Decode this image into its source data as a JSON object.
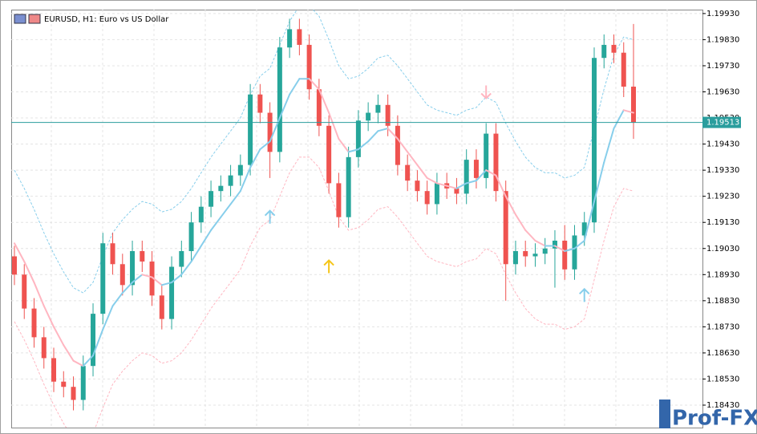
{
  "chart_data": {
    "type": "candlestick",
    "title": "EURUSD, H1:  Euro vs US Dollar",
    "open": [
      1.19,
      1.1893,
      1.188,
      1.1869,
      1.1861,
      1.1852,
      1.185,
      1.1845,
      1.1858,
      1.1878,
      1.1905,
      1.1897,
      1.1889,
      1.1902,
      1.1898,
      1.1885,
      1.1876,
      1.1896,
      1.1902,
      1.1913,
      1.1919,
      1.1925,
      1.1927,
      1.1931,
      1.1935,
      1.1962,
      1.1955,
      1.194,
      1.198,
      1.1987,
      1.1981,
      1.1964,
      1.195,
      1.1928,
      1.1915,
      1.1938,
      1.1952,
      1.1955,
      1.1958,
      1.195,
      1.1935,
      1.1929,
      1.1925,
      1.192,
      1.1928,
      1.1926,
      1.1924,
      1.1937,
      1.193,
      1.1947,
      1.1925,
      1.1897,
      1.1902,
      1.19,
      1.1901,
      1.1903,
      1.1906,
      1.1895,
      1.1908,
      1.1913,
      1.1976,
      1.1981,
      1.1978,
      1.1965
    ],
    "high": [
      1.1904,
      1.1897,
      1.1884,
      1.1873,
      1.1865,
      1.1856,
      1.1854,
      1.1862,
      1.1882,
      1.1909,
      1.1909,
      1.1901,
      1.1906,
      1.1906,
      1.1902,
      1.1889,
      1.19,
      1.1906,
      1.1917,
      1.1923,
      1.1929,
      1.1931,
      1.1935,
      1.1939,
      1.1966,
      1.1966,
      1.1959,
      1.1984,
      1.1991,
      1.1991,
      1.1985,
      1.1968,
      1.1954,
      1.1932,
      1.1942,
      1.1956,
      1.1959,
      1.1962,
      1.1962,
      1.1954,
      1.1939,
      1.1933,
      1.1929,
      1.1932,
      1.1932,
      1.193,
      1.1941,
      1.1941,
      1.1951,
      1.1951,
      1.1929,
      1.1906,
      1.1906,
      1.1905,
      1.1907,
      1.191,
      1.1912,
      1.1912,
      1.1917,
      1.198,
      1.1985,
      1.1985,
      1.1982,
      1.1989
    ],
    "low": [
      1.1889,
      1.1876,
      1.1865,
      1.1857,
      1.1848,
      1.1846,
      1.1841,
      1.1841,
      1.1854,
      1.1874,
      1.1893,
      1.1885,
      1.1885,
      1.1894,
      1.1881,
      1.1872,
      1.1872,
      1.1892,
      1.1898,
      1.1909,
      1.1915,
      1.1921,
      1.1923,
      1.1927,
      1.1931,
      1.1951,
      1.193,
      1.1936,
      1.1976,
      1.1977,
      1.196,
      1.1946,
      1.1924,
      1.1911,
      1.1911,
      1.1934,
      1.1948,
      1.1951,
      1.1946,
      1.1931,
      1.1925,
      1.1921,
      1.1916,
      1.1916,
      1.1922,
      1.192,
      1.192,
      1.1926,
      1.1926,
      1.1921,
      1.1883,
      1.1893,
      1.1896,
      1.1896,
      1.1897,
      1.1888,
      1.1891,
      1.1891,
      1.1904,
      1.1909,
      1.1972,
      1.1974,
      1.1961,
      1.1945
    ],
    "close": [
      1.1893,
      1.188,
      1.1869,
      1.1861,
      1.1852,
      1.185,
      1.1845,
      1.1858,
      1.1878,
      1.1905,
      1.1897,
      1.1889,
      1.1902,
      1.1898,
      1.1885,
      1.1876,
      1.1896,
      1.1902,
      1.1913,
      1.1919,
      1.1925,
      1.1927,
      1.1931,
      1.1935,
      1.1962,
      1.1955,
      1.194,
      1.198,
      1.1987,
      1.1981,
      1.1964,
      1.195,
      1.1928,
      1.1915,
      1.1938,
      1.1952,
      1.1955,
      1.1958,
      1.195,
      1.1935,
      1.1929,
      1.1925,
      1.192,
      1.1928,
      1.1926,
      1.1924,
      1.1937,
      1.193,
      1.1947,
      1.1925,
      1.1897,
      1.1902,
      1.19,
      1.1901,
      1.1903,
      1.1906,
      1.1895,
      1.1908,
      1.1913,
      1.1976,
      1.1981,
      1.1978,
      1.1965,
      1.19513
    ],
    "up_color": "#26a69a",
    "down_color": "#ef5350",
    "ma": {
      "color_up": "#87ceeb",
      "color_down": "#ffb6c1",
      "values": [
        1.1905,
        1.1898,
        1.189,
        1.1881,
        1.1873,
        1.1866,
        1.186,
        1.1858,
        1.1862,
        1.1872,
        1.1881,
        1.1886,
        1.189,
        1.1893,
        1.1892,
        1.1889,
        1.189,
        1.1893,
        1.1898,
        1.1904,
        1.191,
        1.1915,
        1.192,
        1.1925,
        1.1934,
        1.1941,
        1.1944,
        1.1953,
        1.1962,
        1.1968,
        1.1968,
        1.1964,
        1.1955,
        1.1945,
        1.194,
        1.1941,
        1.1944,
        1.1948,
        1.1949,
        1.1945,
        1.194,
        1.1935,
        1.193,
        1.1928,
        1.1927,
        1.1926,
        1.1928,
        1.1929,
        1.1933,
        1.1931,
        1.1923,
        1.1916,
        1.191,
        1.1906,
        1.1904,
        1.1904,
        1.1902,
        1.1903,
        1.1906,
        1.1921,
        1.1936,
        1.1949,
        1.1956,
        1.1955
      ]
    },
    "upper_band": {
      "color": "#87ceeb",
      "values": [
        1.1933,
        1.1926,
        1.1918,
        1.1909,
        1.1901,
        1.1894,
        1.1888,
        1.1886,
        1.189,
        1.19,
        1.1909,
        1.1914,
        1.1918,
        1.1921,
        1.192,
        1.1917,
        1.1918,
        1.1921,
        1.1926,
        1.1932,
        1.1938,
        1.1943,
        1.1948,
        1.1953,
        1.1962,
        1.1969,
        1.1972,
        1.1981,
        1.199,
        1.1996,
        1.1996,
        1.1992,
        1.1983,
        1.1973,
        1.1968,
        1.1969,
        1.1972,
        1.1976,
        1.1977,
        1.1973,
        1.1968,
        1.1963,
        1.1958,
        1.1956,
        1.1955,
        1.1954,
        1.1956,
        1.1957,
        1.1961,
        1.1959,
        1.1951,
        1.1944,
        1.1938,
        1.1934,
        1.1932,
        1.1932,
        1.193,
        1.1931,
        1.1934,
        1.1949,
        1.1964,
        1.1977,
        1.1984,
        1.1983
      ]
    },
    "lower_band": {
      "color": "#ffb6c1",
      "values": [
        1.1875,
        1.1868,
        1.186,
        1.1851,
        1.1843,
        1.1836,
        1.183,
        1.1828,
        1.1832,
        1.1842,
        1.1851,
        1.1856,
        1.186,
        1.1863,
        1.1862,
        1.1859,
        1.186,
        1.1863,
        1.1868,
        1.1874,
        1.188,
        1.1885,
        1.189,
        1.1895,
        1.1904,
        1.1911,
        1.1914,
        1.1923,
        1.1932,
        1.1938,
        1.1938,
        1.1934,
        1.1925,
        1.1915,
        1.191,
        1.1911,
        1.1914,
        1.1918,
        1.1919,
        1.1915,
        1.191,
        1.1905,
        1.19,
        1.1898,
        1.1897,
        1.1896,
        1.1898,
        1.1899,
        1.1903,
        1.1901,
        1.1893,
        1.1886,
        1.188,
        1.1876,
        1.1874,
        1.1874,
        1.1872,
        1.1873,
        1.1876,
        1.1891,
        1.1906,
        1.1919,
        1.1926,
        1.1925
      ]
    },
    "signals": [
      {
        "index": 26,
        "value": 1.1915,
        "direction": "up",
        "color": "#87ceeb"
      },
      {
        "index": 32,
        "value": 1.1896,
        "direction": "up",
        "color": "#f5c518"
      },
      {
        "index": 48,
        "value": 1.1963,
        "direction": "down",
        "color": "#ffb6c1"
      },
      {
        "index": 58,
        "value": 1.1885,
        "direction": "up",
        "color": "#87ceeb"
      }
    ],
    "price_line": {
      "value": 1.19513,
      "label": "1.19513",
      "color": "#2a9d9d"
    },
    "ylim": [
      1.18344,
      1.19945
    ],
    "yticks": [
      {
        "value": 1.1993,
        "label": "1.19930"
      },
      {
        "value": 1.1983,
        "label": "1.19830"
      },
      {
        "value": 1.1973,
        "label": "1.19730"
      },
      {
        "value": 1.1963,
        "label": "1.19630"
      },
      {
        "value": 1.1953,
        "label": "1.19530"
      },
      {
        "value": 1.1943,
        "label": "1.19430"
      },
      {
        "value": 1.1933,
        "label": "1.19330"
      },
      {
        "value": 1.1923,
        "label": "1.19230"
      },
      {
        "value": 1.1913,
        "label": "1.19130"
      },
      {
        "value": 1.1903,
        "label": "1.19030"
      },
      {
        "value": 1.1893,
        "label": "1.18930"
      },
      {
        "value": 1.1883,
        "label": "1.18830"
      },
      {
        "value": 1.1873,
        "label": "1.18730"
      },
      {
        "value": 1.1863,
        "label": "1.18630"
      },
      {
        "value": 1.1853,
        "label": "1.18530"
      },
      {
        "value": 1.1843,
        "label": "1.18430"
      }
    ],
    "grid": true,
    "watermark": "Prof-FX"
  }
}
